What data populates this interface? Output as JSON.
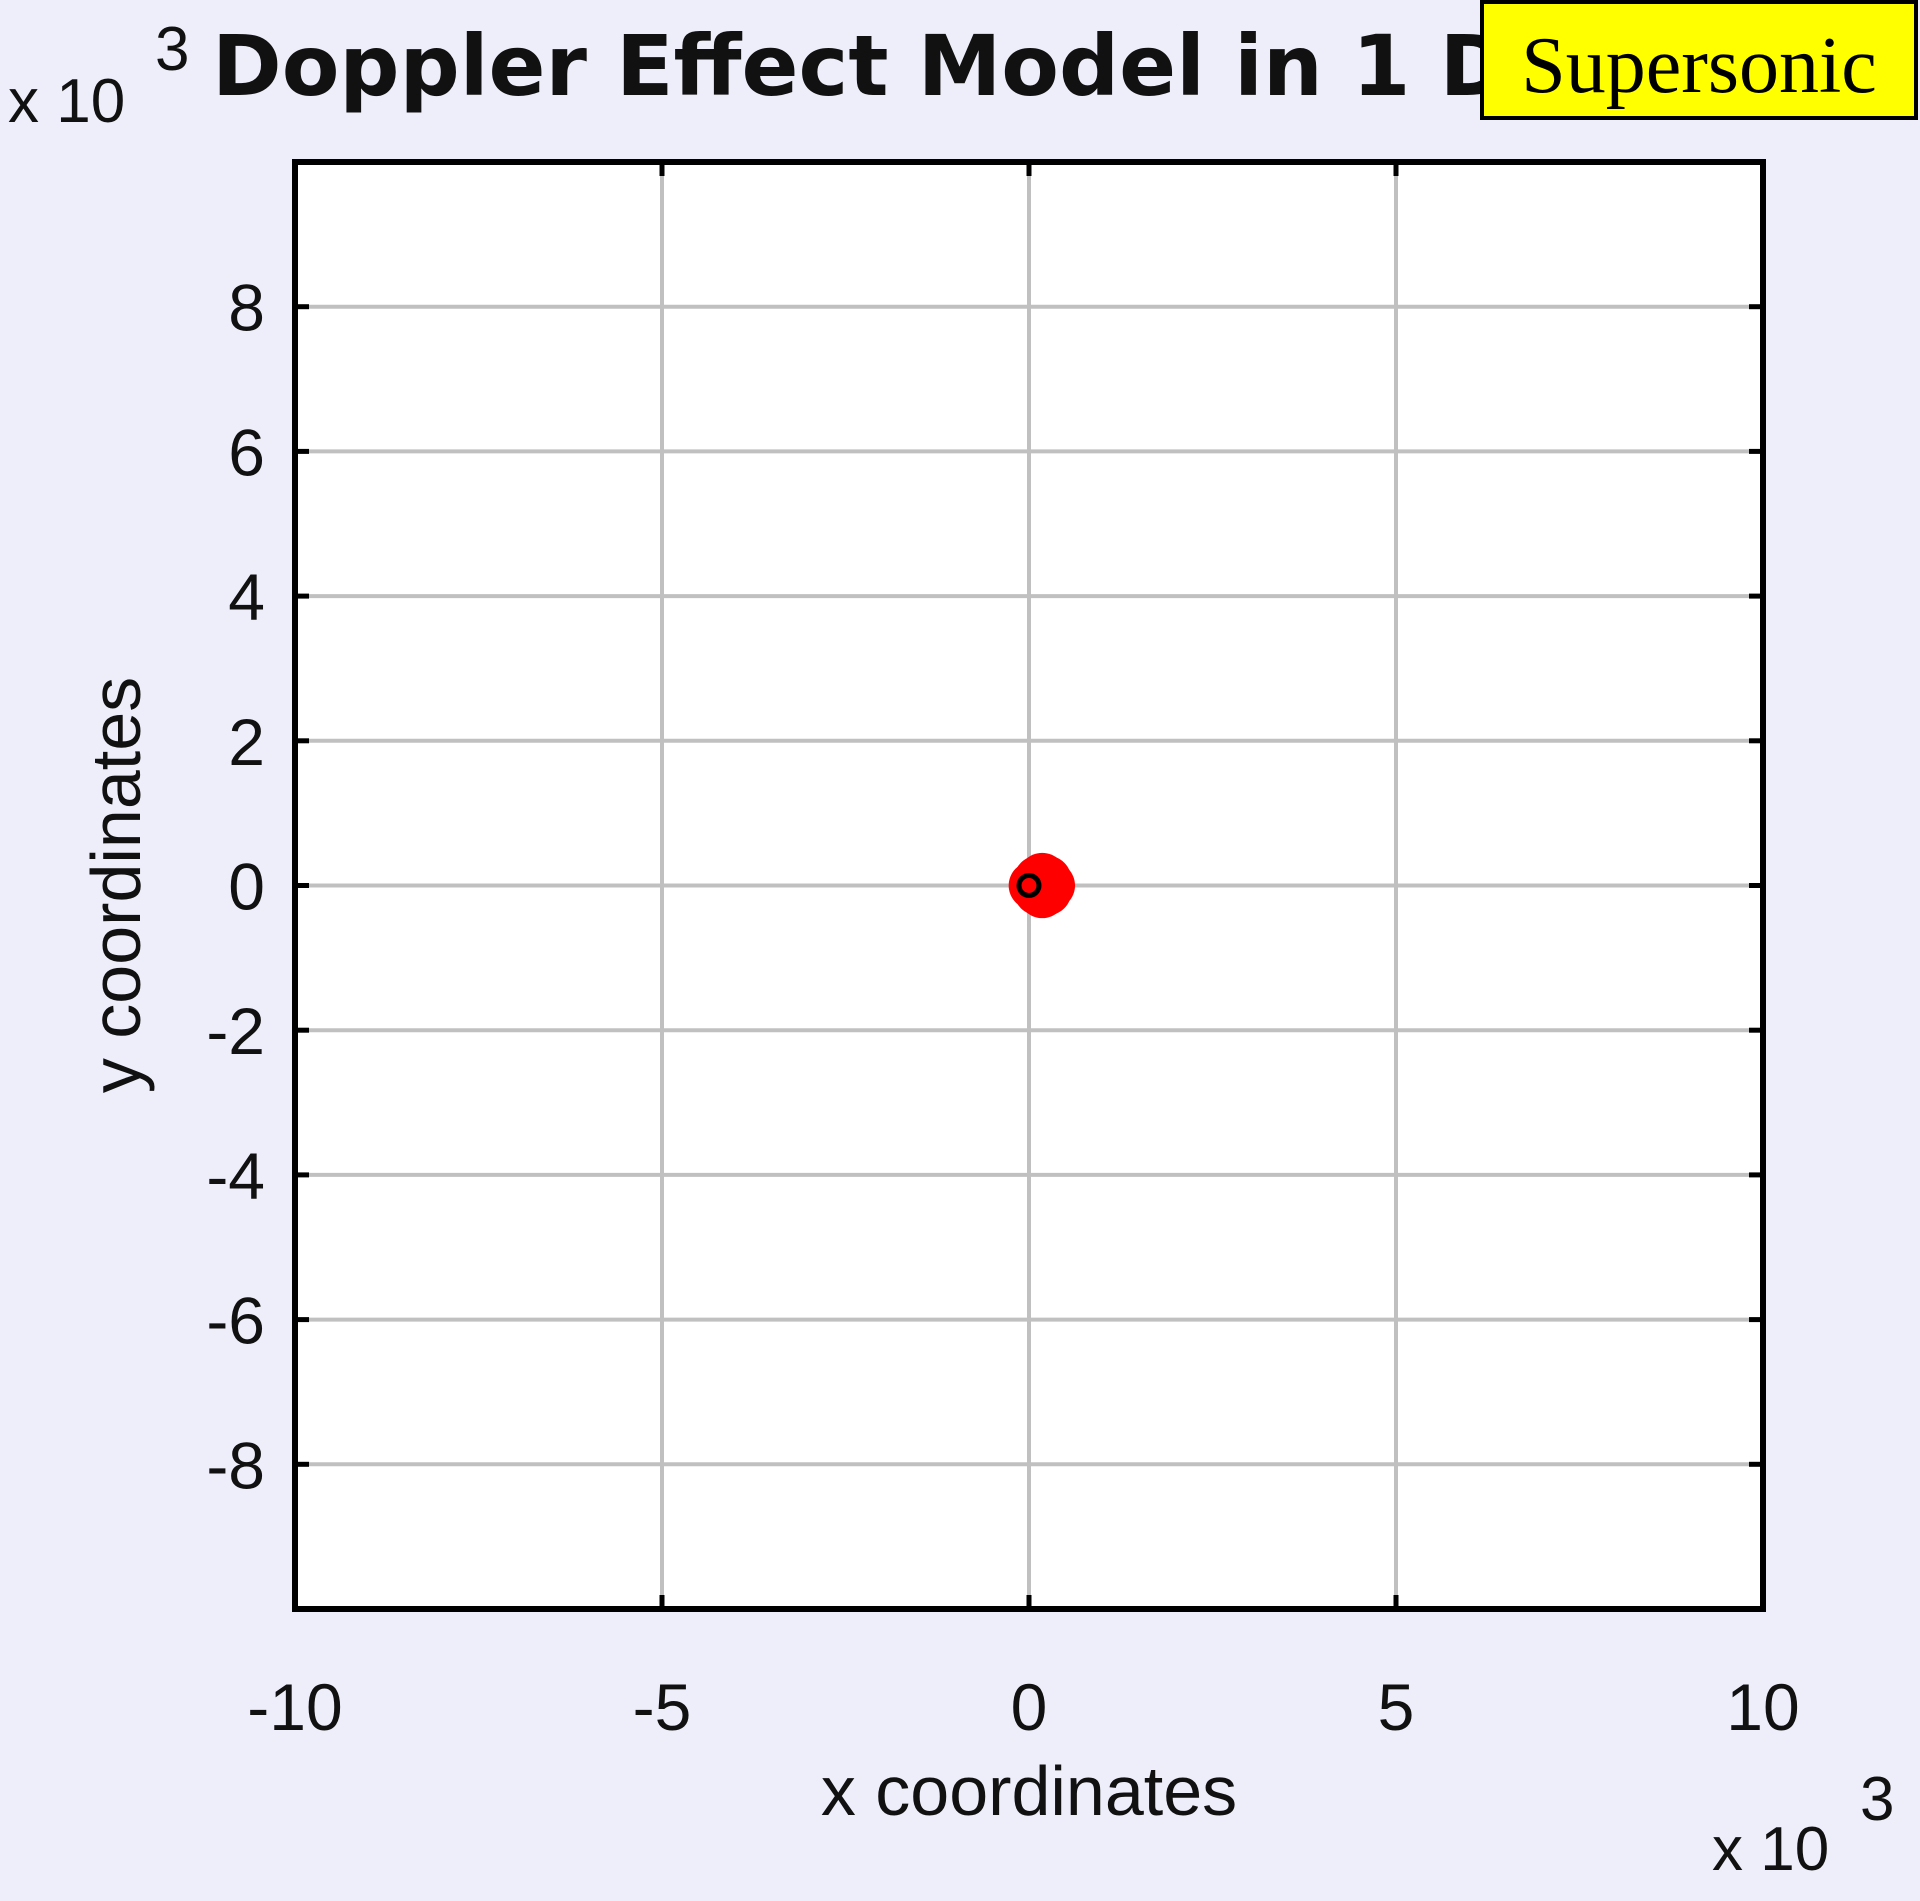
{
  "colors": {
    "figure_bg": "#eeeefa",
    "axes_bg": "#ffffff",
    "grid": "#c0c0c0",
    "axes": "#000000",
    "wave": "#ff0000",
    "source": "#000000",
    "badge_bg": "#ffff00"
  },
  "status_badge": {
    "label": "Supersonic"
  },
  "chart_data": {
    "type": "scatter",
    "title": "Doppler Effect Model in 1 Di",
    "xlabel": "x coordinates",
    "ylabel": "y coordinates",
    "x_multiplier": {
      "base": "x 10",
      "exponent": "3"
    },
    "y_multiplier": {
      "base": "x 10",
      "exponent": "3"
    },
    "xlim": [
      -10,
      10
    ],
    "ylim": [
      -10,
      10
    ],
    "xticks": [
      -10,
      -5,
      0,
      5,
      10
    ],
    "xtick_labels": [
      "-10",
      "-5",
      "0",
      "5",
      "10"
    ],
    "yticks": [
      -8,
      -6,
      -4,
      -2,
      0,
      2,
      4,
      6,
      8
    ],
    "ytick_labels": [
      "-8",
      "-6",
      "-4",
      "-2",
      "0",
      "2",
      "4",
      "6",
      "8"
    ],
    "grid": true,
    "series": [
      {
        "marker": "filled-circle",
        "color": "#ff0000",
        "points": [
          {
            "x": 0.05,
            "y": 0.0
          },
          {
            "x": 0.12,
            "y": 0.08
          },
          {
            "x": 0.12,
            "y": -0.08
          },
          {
            "x": 0.18,
            "y": 0.12
          },
          {
            "x": 0.18,
            "y": -0.12
          },
          {
            "x": 0.25,
            "y": 0.08
          },
          {
            "x": 0.25,
            "y": -0.08
          },
          {
            "x": 0.3,
            "y": 0.0
          },
          {
            "x": 0.2,
            "y": 0.0
          }
        ]
      },
      {
        "marker": "open-circle",
        "color": "#000000",
        "points": [
          {
            "x": 0.0,
            "y": 0.0
          }
        ]
      }
    ]
  }
}
